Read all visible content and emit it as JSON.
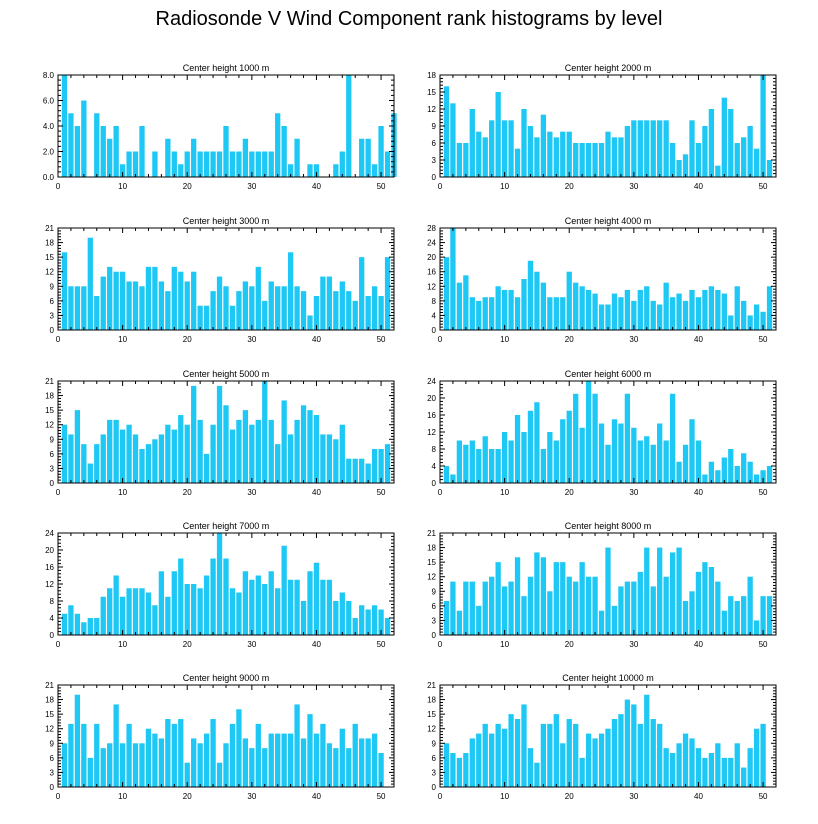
{
  "title": "Radiosonde V Wind Component rank histograms by level",
  "colors": {
    "bar": "#1ec8f5",
    "axis": "#000000",
    "background": "#ffffff"
  },
  "chart_data": [
    {
      "type": "bar",
      "title": "Center height 1000 m",
      "xlim": [
        0,
        52
      ],
      "ylim": [
        0,
        8
      ],
      "yticks": [
        0,
        2,
        4,
        6,
        8
      ],
      "ytick_labels": [
        "0.0",
        "2.0",
        "4.0",
        "6.0",
        "8.0"
      ],
      "xticks": [
        0,
        10,
        20,
        30,
        40,
        50
      ],
      "xtick_labels": [
        "0",
        "10",
        "20",
        "30",
        "40",
        "50"
      ],
      "values": [
        0,
        8,
        5,
        4,
        6,
        0,
        5,
        4,
        3,
        4,
        1,
        2,
        2,
        4,
        0,
        2,
        0,
        3,
        2,
        1,
        2,
        3,
        2,
        2,
        2,
        2,
        4,
        2,
        2,
        3,
        2,
        2,
        2,
        2,
        5,
        4,
        1,
        3,
        0,
        1,
        1,
        0,
        0,
        1,
        2,
        8,
        0,
        3,
        3,
        1,
        4,
        2,
        5
      ]
    },
    {
      "type": "bar",
      "title": "Center height 2000 m",
      "xlim": [
        0,
        52
      ],
      "ylim": [
        0,
        18
      ],
      "yticks": [
        0,
        3,
        6,
        9,
        12,
        15,
        18
      ],
      "ytick_labels": [
        "0",
        "3",
        "6",
        "9",
        "12",
        "15",
        "18"
      ],
      "xticks": [
        0,
        10,
        20,
        30,
        40,
        50
      ],
      "xtick_labels": [
        "0",
        "10",
        "20",
        "30",
        "40",
        "50"
      ],
      "values": [
        0,
        16,
        13,
        6,
        6,
        12,
        8,
        7,
        10,
        15,
        10,
        10,
        5,
        12,
        9,
        7,
        11,
        8,
        7,
        8,
        8,
        6,
        6,
        6,
        6,
        6,
        8,
        7,
        7,
        9,
        10,
        10,
        10,
        10,
        10,
        10,
        6,
        3,
        4,
        10,
        6,
        9,
        12,
        2,
        14,
        12,
        6,
        7,
        9,
        5,
        18,
        3,
        0
      ]
    },
    {
      "type": "bar",
      "title": "Center height 3000 m",
      "xlim": [
        0,
        52
      ],
      "ylim": [
        0,
        21
      ],
      "yticks": [
        0,
        3,
        6,
        9,
        12,
        15,
        18,
        21
      ],
      "ytick_labels": [
        "0",
        "3",
        "6",
        "9",
        "12",
        "15",
        "18",
        "21"
      ],
      "xticks": [
        0,
        10,
        20,
        30,
        40,
        50
      ],
      "xtick_labels": [
        "0",
        "10",
        "20",
        "30",
        "40",
        "50"
      ],
      "values": [
        0,
        16,
        9,
        9,
        9,
        19,
        7,
        11,
        13,
        12,
        12,
        10,
        10,
        9,
        13,
        13,
        10,
        8,
        13,
        12,
        10,
        12,
        5,
        5,
        8,
        11,
        9,
        5,
        8,
        10,
        9,
        13,
        6,
        10,
        9,
        9,
        16,
        9,
        8,
        3,
        7,
        11,
        11,
        8,
        10,
        8,
        6,
        15,
        7,
        9,
        7,
        15,
        0
      ]
    },
    {
      "type": "bar",
      "title": "Center height 4000 m",
      "xlim": [
        0,
        52
      ],
      "ylim": [
        0,
        28
      ],
      "yticks": [
        0,
        4,
        8,
        12,
        16,
        20,
        24,
        28
      ],
      "ytick_labels": [
        "0",
        "4",
        "8",
        "12",
        "16",
        "20",
        "24",
        "28"
      ],
      "xticks": [
        0,
        10,
        20,
        30,
        40,
        50
      ],
      "xtick_labels": [
        "0",
        "10",
        "20",
        "30",
        "40",
        "50"
      ],
      "values": [
        0,
        20,
        28,
        13,
        15,
        9,
        8,
        9,
        9,
        12,
        11,
        11,
        9,
        14,
        19,
        16,
        13,
        9,
        9,
        9,
        16,
        13,
        12,
        11,
        10,
        7,
        7,
        10,
        9,
        11,
        8,
        11,
        12,
        8,
        7,
        13,
        9,
        10,
        8,
        11,
        9,
        11,
        12,
        11,
        10,
        4,
        12,
        8,
        4,
        7,
        5,
        12,
        0
      ]
    },
    {
      "type": "bar",
      "title": "Center height 5000 m",
      "xlim": [
        0,
        52
      ],
      "ylim": [
        0,
        21
      ],
      "yticks": [
        0,
        3,
        6,
        9,
        12,
        15,
        18,
        21
      ],
      "ytick_labels": [
        "0",
        "3",
        "6",
        "9",
        "12",
        "15",
        "18",
        "21"
      ],
      "xticks": [
        0,
        10,
        20,
        30,
        40,
        50
      ],
      "xtick_labels": [
        "0",
        "10",
        "20",
        "30",
        "40",
        "50"
      ],
      "values": [
        0,
        12,
        10,
        15,
        8,
        4,
        8,
        10,
        13,
        13,
        11,
        12,
        10,
        7,
        8,
        9,
        10,
        12,
        11,
        14,
        12,
        20,
        13,
        6,
        12,
        20,
        16,
        11,
        13,
        15,
        12,
        13,
        21,
        13,
        8,
        17,
        10,
        13,
        16,
        15,
        14,
        10,
        10,
        9,
        12,
        5,
        5,
        5,
        4,
        7,
        7,
        8,
        0
      ]
    },
    {
      "type": "bar",
      "title": "Center height 6000 m",
      "xlim": [
        0,
        52
      ],
      "ylim": [
        0,
        24
      ],
      "yticks": [
        0,
        4,
        8,
        12,
        16,
        20,
        24
      ],
      "ytick_labels": [
        "0",
        "4",
        "8",
        "12",
        "16",
        "20",
        "24"
      ],
      "xticks": [
        0,
        10,
        20,
        30,
        40,
        50
      ],
      "xtick_labels": [
        "0",
        "10",
        "20",
        "30",
        "40",
        "50"
      ],
      "values": [
        0,
        4,
        2,
        10,
        9,
        10,
        8,
        11,
        8,
        8,
        12,
        10,
        16,
        12,
        17,
        19,
        8,
        12,
        10,
        15,
        17,
        21,
        13,
        24,
        21,
        14,
        9,
        15,
        14,
        21,
        13,
        10,
        11,
        9,
        14,
        10,
        21,
        5,
        9,
        15,
        10,
        2,
        5,
        3,
        6,
        8,
        4,
        7,
        5,
        2,
        3,
        4,
        0
      ]
    },
    {
      "type": "bar",
      "title": "Center height 7000 m",
      "xlim": [
        0,
        52
      ],
      "ylim": [
        0,
        24
      ],
      "yticks": [
        0,
        4,
        8,
        12,
        16,
        20,
        24
      ],
      "ytick_labels": [
        "0",
        "4",
        "8",
        "12",
        "16",
        "20",
        "24"
      ],
      "xticks": [
        0,
        10,
        20,
        30,
        40,
        50
      ],
      "xtick_labels": [
        "0",
        "10",
        "20",
        "30",
        "40",
        "50"
      ],
      "values": [
        0,
        5,
        7,
        5,
        3,
        4,
        4,
        9,
        11,
        14,
        9,
        11,
        11,
        11,
        10,
        7,
        15,
        9,
        15,
        18,
        12,
        12,
        11,
        14,
        18,
        24,
        18,
        11,
        10,
        15,
        13,
        14,
        12,
        15,
        11,
        21,
        13,
        13,
        8,
        15,
        17,
        13,
        13,
        8,
        10,
        8,
        4,
        7,
        6,
        7,
        6,
        4,
        0
      ]
    },
    {
      "type": "bar",
      "title": "Center height 8000 m",
      "xlim": [
        0,
        52
      ],
      "ylim": [
        0,
        21
      ],
      "yticks": [
        0,
        3,
        6,
        9,
        12,
        15,
        18,
        21
      ],
      "ytick_labels": [
        "0",
        "3",
        "6",
        "9",
        "12",
        "15",
        "18",
        "21"
      ],
      "xticks": [
        0,
        10,
        20,
        30,
        40,
        50
      ],
      "xtick_labels": [
        "0",
        "10",
        "20",
        "30",
        "40",
        "50"
      ],
      "values": [
        0,
        7,
        11,
        5,
        11,
        11,
        6,
        11,
        12,
        15,
        10,
        11,
        16,
        8,
        12,
        17,
        16,
        9,
        15,
        15,
        12,
        11,
        15,
        12,
        12,
        5,
        18,
        6,
        10,
        11,
        11,
        13,
        18,
        10,
        18,
        12,
        17,
        18,
        7,
        9,
        13,
        15,
        14,
        11,
        5,
        8,
        7,
        8,
        12,
        3,
        8,
        8,
        0
      ]
    },
    {
      "type": "bar",
      "title": "Center height 9000 m",
      "xlim": [
        0,
        52
      ],
      "ylim": [
        0,
        21
      ],
      "yticks": [
        0,
        3,
        6,
        9,
        12,
        15,
        18,
        21
      ],
      "ytick_labels": [
        "0",
        "3",
        "6",
        "9",
        "12",
        "15",
        "18",
        "21"
      ],
      "xticks": [
        0,
        10,
        20,
        30,
        40,
        50
      ],
      "xtick_labels": [
        "0",
        "10",
        "20",
        "30",
        "40",
        "50"
      ],
      "values": [
        0,
        9,
        13,
        19,
        13,
        6,
        13,
        8,
        9,
        17,
        9,
        13,
        9,
        9,
        12,
        11,
        10,
        14,
        13,
        14,
        5,
        10,
        9,
        11,
        14,
        5,
        9,
        13,
        16,
        10,
        8,
        13,
        8,
        11,
        11,
        11,
        11,
        17,
        10,
        15,
        11,
        13,
        9,
        8,
        12,
        8,
        13,
        10,
        10,
        11,
        7,
        0,
        0
      ]
    },
    {
      "type": "bar",
      "title": "Center height 10000 m",
      "xlim": [
        0,
        52
      ],
      "ylim": [
        0,
        21
      ],
      "yticks": [
        0,
        3,
        6,
        9,
        12,
        15,
        18,
        21
      ],
      "ytick_labels": [
        "0",
        "3",
        "6",
        "9",
        "12",
        "15",
        "18",
        "21"
      ],
      "xticks": [
        0,
        10,
        20,
        30,
        40,
        50
      ],
      "xtick_labels": [
        "0",
        "10",
        "20",
        "30",
        "40",
        "50"
      ],
      "values": [
        0,
        9,
        7,
        6,
        7,
        10,
        11,
        13,
        11,
        13,
        12,
        15,
        14,
        17,
        8,
        5,
        13,
        13,
        15,
        9,
        14,
        13,
        6,
        11,
        10,
        11,
        12,
        14,
        15,
        18,
        17,
        13,
        19,
        14,
        13,
        8,
        7,
        9,
        11,
        10,
        8,
        6,
        7,
        9,
        6,
        6,
        9,
        4,
        8,
        12,
        13,
        0,
        0
      ]
    }
  ]
}
